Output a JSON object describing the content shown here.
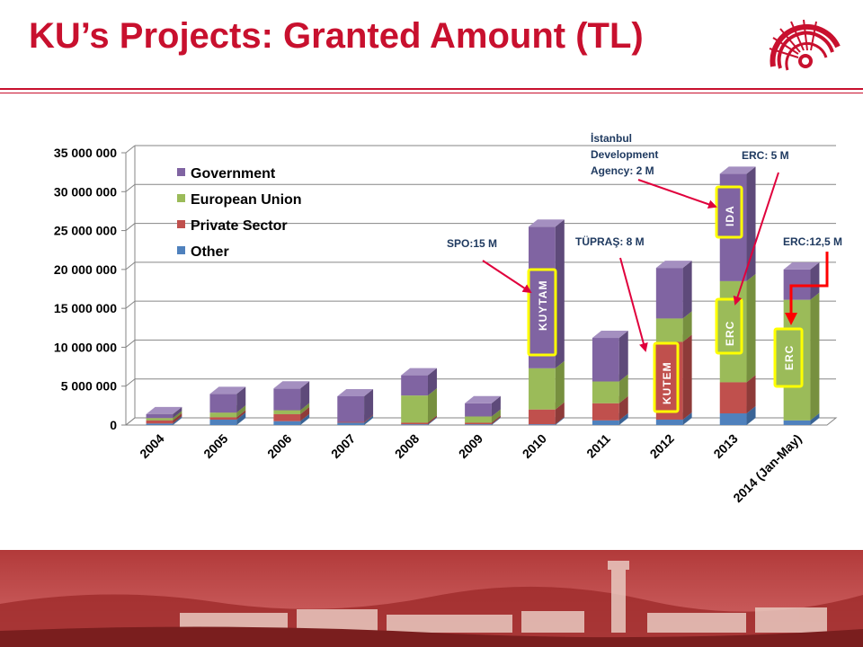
{
  "slide": {
    "title": "KU’s Projects: Granted Amount (TL)"
  },
  "colors": {
    "title": "#C8102E",
    "government": "#8064A2",
    "european_union": "#9BBB59",
    "private_sector": "#C0504D",
    "other": "#4F81BD",
    "highlight_box": "#FFFF00",
    "arrow": "#E0003C",
    "arrow_red": "#FF0000"
  },
  "chart_data": {
    "type": "bar",
    "stacked": true,
    "three_d": true,
    "categories": [
      "2004",
      "2005",
      "2006",
      "2007",
      "2008",
      "2009",
      "2010",
      "2011",
      "2012",
      "2013",
      "2014 (Jan-May)"
    ],
    "series": [
      {
        "name": "Other",
        "values": [
          200000,
          700000,
          500000,
          300000,
          100000,
          100000,
          100000,
          600000,
          700000,
          1500000,
          600000
        ]
      },
      {
        "name": "Private Sector",
        "values": [
          400000,
          300000,
          900000,
          100000,
          200000,
          200000,
          1900000,
          2200000,
          10000000,
          4000000,
          0
        ]
      },
      {
        "name": "European Union",
        "values": [
          300000,
          600000,
          500000,
          0,
          3500000,
          800000,
          5300000,
          2800000,
          3000000,
          13000000,
          15500000
        ]
      },
      {
        "name": "Government",
        "values": [
          500000,
          2400000,
          2800000,
          3300000,
          2600000,
          1700000,
          18200000,
          5600000,
          6500000,
          13800000,
          3900000
        ]
      }
    ],
    "ylim": [
      0,
      35000000
    ],
    "yticks": [
      "0",
      "5 000 000",
      "10 000 000",
      "15 000 000",
      "20 000 000",
      "25 000 000",
      "30 000 000",
      "35 000 000"
    ],
    "legend": {
      "placement": "top-left",
      "entries": [
        "Government",
        "European Union",
        "Private Sector",
        "Other"
      ]
    },
    "grid": true,
    "annotations": [
      {
        "text": "SPO:15 M"
      },
      {
        "text": "TÜPRAŞ: 8 M"
      },
      {
        "text_lines": [
          "İstanbul",
          "Development",
          "Agency: 2 M"
        ]
      },
      {
        "text": "ERC: 5 M"
      },
      {
        "text": "ERC:12,5 M"
      }
    ],
    "box_labels": [
      "KUYTAM",
      "KUTEM",
      "IDA",
      "ERC",
      "ERC"
    ]
  }
}
